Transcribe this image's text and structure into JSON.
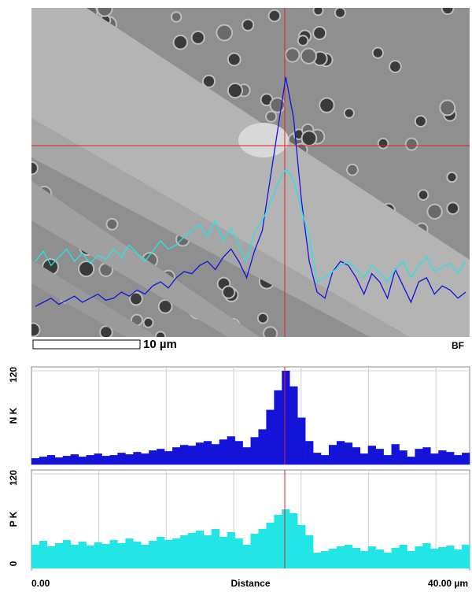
{
  "image": {
    "scale_bar_label": "10 µm",
    "mode_label": "BF"
  },
  "chart_data": [
    {
      "type": "bar",
      "ylabel": "N K",
      "color": "#1414d8",
      "values": [
        8,
        10,
        12,
        9,
        11,
        13,
        10,
        12,
        14,
        11,
        12,
        15,
        13,
        16,
        14,
        18,
        20,
        17,
        22,
        25,
        24,
        28,
        30,
        26,
        32,
        36,
        30,
        22,
        35,
        45,
        70,
        95,
        120,
        100,
        60,
        30,
        15,
        12,
        25,
        30,
        28,
        22,
        14,
        24,
        20,
        12,
        26,
        18,
        10,
        20,
        22,
        14,
        18,
        16,
        12,
        15
      ],
      "xlim": [
        0,
        40
      ],
      "ylim": [
        0,
        125
      ],
      "yticks": [
        120
      ],
      "grid": true
    },
    {
      "type": "bar",
      "ylabel": "P K",
      "color": "#22e6e6",
      "values": [
        30,
        35,
        28,
        32,
        36,
        30,
        34,
        29,
        33,
        31,
        36,
        32,
        38,
        34,
        30,
        35,
        40,
        36,
        38,
        42,
        45,
        48,
        42,
        50,
        40,
        46,
        38,
        30,
        44,
        50,
        58,
        68,
        75,
        70,
        55,
        42,
        20,
        22,
        25,
        28,
        30,
        26,
        22,
        28,
        24,
        20,
        26,
        30,
        22,
        28,
        32,
        25,
        27,
        29,
        24,
        30
      ],
      "xlim": [
        0,
        40
      ],
      "ylim": [
        0,
        125
      ],
      "yticks": [
        0,
        120
      ],
      "grid": true,
      "xlabel": "Distance",
      "xticks": [
        {
          "value": 0,
          "label": "0.00"
        },
        {
          "value": 40,
          "label": "40.00 µm"
        }
      ]
    }
  ]
}
